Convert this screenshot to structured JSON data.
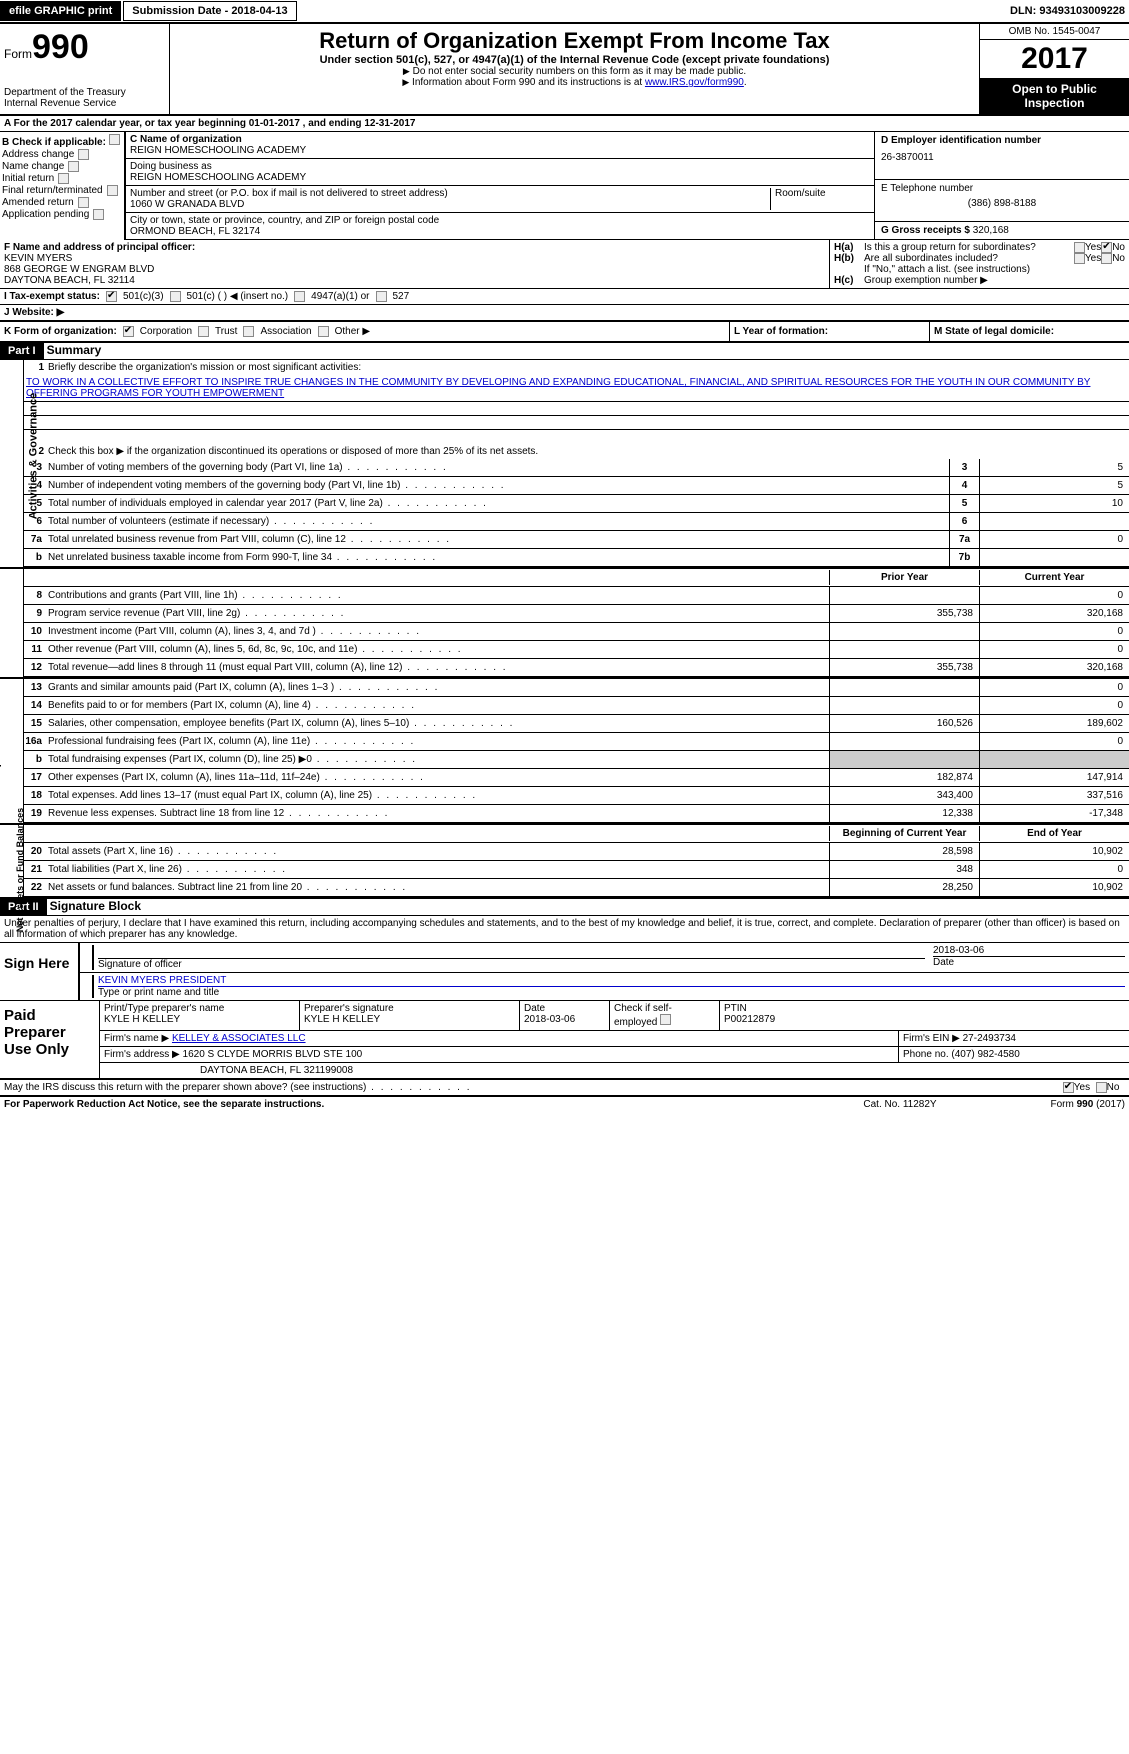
{
  "top": {
    "efile": "efile GRAPHIC print",
    "submission": "Submission Date - 2018-04-13",
    "dln": "DLN: 93493103009228"
  },
  "header": {
    "form": "Form",
    "num": "990",
    "dept": "Department of the Treasury",
    "irs": "Internal Revenue Service",
    "title": "Return of Organization Exempt From Income Tax",
    "sub1": "Under section 501(c), 527, or 4947(a)(1) of the Internal Revenue Code (except private foundations)",
    "sub2": "Do not enter social security numbers on this form as it may be made public.",
    "sub3_pre": "Information about Form 990 and its instructions is at ",
    "sub3_link": "www.IRS.gov/form990",
    "omb": "OMB No. 1545-0047",
    "year": "2017",
    "open": "Open to Public Inspection"
  },
  "row_a": "A   For the 2017 calendar year, or tax year beginning 01-01-2017       , and ending 12-31-2017",
  "col_b": {
    "title": "B Check if applicable:",
    "items": [
      "Address change",
      "Name change",
      "Initial return",
      "Final return/terminated",
      "Amended return",
      "Application pending"
    ]
  },
  "c": {
    "label_name": "C Name of organization",
    "name": "REIGN HOMESCHOOLING ACADEMY",
    "label_dba": "Doing business as",
    "dba": "REIGN HOMESCHOOLING ACADEMY",
    "label_addr": "Number and street (or P.O. box if mail is not delivered to street address)",
    "addr": "1060 W GRANADA BLVD",
    "room": "Room/suite",
    "label_city": "City or town, state or province, country, and ZIP or foreign postal code",
    "city": "ORMOND BEACH, FL  32174"
  },
  "d": {
    "label": "D Employer identification number",
    "val": "26-3870011"
  },
  "e": {
    "label": "E Telephone number",
    "val": "(386) 898-8188"
  },
  "g": {
    "label": "G Gross receipts $ ",
    "val": "320,168"
  },
  "f": {
    "label": "F Name and address of principal officer:",
    "name": "KEVIN MYERS",
    "addr1": "868 GEORGE W ENGRAM BLVD",
    "addr2": "DAYTONA BEACH, FL  32114"
  },
  "h": {
    "a_label": "H(a)",
    "a_text": "Is this a group return for subordinates?",
    "a_yes": "Yes",
    "a_no": "No",
    "b_label": "H(b)",
    "b_text": "Are all subordinates included?",
    "b_yes": "Yes",
    "b_no": "No",
    "b_note": "If \"No,\" attach a list. (see instructions)",
    "c_label": "H(c)",
    "c_text": "Group exemption number ▶"
  },
  "i": {
    "label": "I      Tax-exempt status:",
    "opts": [
      "501(c)(3)",
      "501(c) (  ) ◀ (insert no.)",
      "4947(a)(1) or",
      "527"
    ]
  },
  "j": "J    Website: ▶",
  "k": {
    "label": "K Form of organization:",
    "opts": [
      "Corporation",
      "Trust",
      "Association",
      "Other ▶"
    ],
    "l": "L Year of formation:",
    "m": "M State of legal domicile:"
  },
  "part1": {
    "hdr": "Part I",
    "title": "Summary"
  },
  "governance": {
    "label": "Activities & Governance",
    "l1": "Briefly describe the organization's mission or most significant activities:",
    "mission": "TO WORK IN A COLLECTIVE EFFORT TO INSPIRE TRUE CHANGES IN THE COMMUNITY BY DEVELOPING AND EXPANDING EDUCATIONAL, FINANCIAL, AND SPIRITUAL RESOURCES FOR THE YOUTH IN OUR COMMUNITY BY OFFERING PROGRAMS FOR YOUTH EMPOWERMENT",
    "l2": "Check this box ▶        if the organization discontinued its operations or disposed of more than 25% of its net assets.",
    "lines": [
      {
        "n": "3",
        "t": "Number of voting members of the governing body (Part VI, line 1a)",
        "box": "3",
        "v": "5"
      },
      {
        "n": "4",
        "t": "Number of independent voting members of the governing body (Part VI, line 1b)",
        "box": "4",
        "v": "5"
      },
      {
        "n": "5",
        "t": "Total number of individuals employed in calendar year 2017 (Part V, line 2a)",
        "box": "5",
        "v": "10"
      },
      {
        "n": "6",
        "t": "Total number of volunteers (estimate if necessary)",
        "box": "6",
        "v": ""
      },
      {
        "n": "7a",
        "t": "Total unrelated business revenue from Part VIII, column (C), line 12",
        "box": "7a",
        "v": "0"
      },
      {
        "n": "b",
        "t": "Net unrelated business taxable income from Form 990-T, line 34",
        "box": "7b",
        "v": ""
      }
    ]
  },
  "col_hdrs": {
    "prior": "Prior Year",
    "current": "Current Year"
  },
  "revenue": {
    "label": "Revenue",
    "lines": [
      {
        "n": "8",
        "t": "Contributions and grants (Part VIII, line 1h)",
        "p": "",
        "c": "0"
      },
      {
        "n": "9",
        "t": "Program service revenue (Part VIII, line 2g)",
        "p": "355,738",
        "c": "320,168"
      },
      {
        "n": "10",
        "t": "Investment income (Part VIII, column (A), lines 3, 4, and 7d )",
        "p": "",
        "c": "0"
      },
      {
        "n": "11",
        "t": "Other revenue (Part VIII, column (A), lines 5, 6d, 8c, 9c, 10c, and 11e)",
        "p": "",
        "c": "0"
      },
      {
        "n": "12",
        "t": "Total revenue—add lines 8 through 11 (must equal Part VIII, column (A), line 12)",
        "p": "355,738",
        "c": "320,168"
      }
    ]
  },
  "expenses": {
    "label": "Expenses",
    "lines": [
      {
        "n": "13",
        "t": "Grants and similar amounts paid (Part IX, column (A), lines 1–3 )",
        "p": "",
        "c": "0"
      },
      {
        "n": "14",
        "t": "Benefits paid to or for members (Part IX, column (A), line 4)",
        "p": "",
        "c": "0"
      },
      {
        "n": "15",
        "t": "Salaries, other compensation, employee benefits (Part IX, column (A), lines 5–10)",
        "p": "160,526",
        "c": "189,602"
      },
      {
        "n": "16a",
        "t": "Professional fundraising fees (Part IX, column (A), line 11e)",
        "p": "",
        "c": "0"
      },
      {
        "n": "b",
        "t": "Total fundraising expenses (Part IX, column (D), line 25) ▶0",
        "p": "shaded",
        "c": "shaded"
      },
      {
        "n": "17",
        "t": "Other expenses (Part IX, column (A), lines 11a–11d, 11f–24e)",
        "p": "182,874",
        "c": "147,914"
      },
      {
        "n": "18",
        "t": "Total expenses. Add lines 13–17 (must equal Part IX, column (A), line 25)",
        "p": "343,400",
        "c": "337,516"
      },
      {
        "n": "19",
        "t": "Revenue less expenses. Subtract line 18 from line 12",
        "p": "12,338",
        "c": "-17,348"
      }
    ]
  },
  "netassets": {
    "label": "Net Assets or Fund Balances",
    "hdr_begin": "Beginning of Current Year",
    "hdr_end": "End of Year",
    "lines": [
      {
        "n": "20",
        "t": "Total assets (Part X, line 16)",
        "p": "28,598",
        "c": "10,902"
      },
      {
        "n": "21",
        "t": "Total liabilities (Part X, line 26)",
        "p": "348",
        "c": "0"
      },
      {
        "n": "22",
        "t": "Net assets or fund balances. Subtract line 21 from line 20",
        "p": "28,250",
        "c": "10,902"
      }
    ]
  },
  "part2": {
    "hdr": "Part II",
    "title": "Signature Block"
  },
  "sig": {
    "penalty": "Under penalties of perjury, I declare that I have examined this return, including accompanying schedules and statements, and to the best of my knowledge and belief, it is true, correct, and complete. Declaration of preparer (other than officer) is based on all information of which preparer has any knowledge.",
    "sign_here": "Sign Here",
    "sig_off": "Signature of officer",
    "date": "2018-03-06",
    "date_lbl": "Date",
    "name": "KEVIN MYERS  PRESIDENT",
    "name_lbl": "Type or print name and title"
  },
  "paid": {
    "label": "Paid Preparer Use Only",
    "r1": {
      "a": "Print/Type preparer's name",
      "av": "KYLE H KELLEY",
      "b": "Preparer's signature",
      "bv": "KYLE H KELLEY",
      "c": "Date",
      "cv": "2018-03-06",
      "d": "Check        if self-employed",
      "e": "PTIN",
      "ev": "P00212879"
    },
    "r2": {
      "a": "Firm's name    ▶ ",
      "av": "KELLEY & ASSOCIATES LLC",
      "b": "Firm's EIN ▶ ",
      "bv": "27-2493734"
    },
    "r3": {
      "a": "Firm's address ▶ ",
      "av": "1620 S CLYDE MORRIS BLVD STE 100",
      "b": "Phone no. ",
      "bv": "(407) 982-4580"
    },
    "r4": "DAYTONA BEACH, FL  321199008"
  },
  "discuss": {
    "text": "May the IRS discuss this return with the preparer shown above? (see instructions)",
    "yes": "Yes",
    "no": "No"
  },
  "footer": {
    "left": "For Paperwork Reduction Act Notice, see the separate instructions.",
    "mid": "Cat. No. 11282Y",
    "right": "Form 990 (2017)"
  }
}
